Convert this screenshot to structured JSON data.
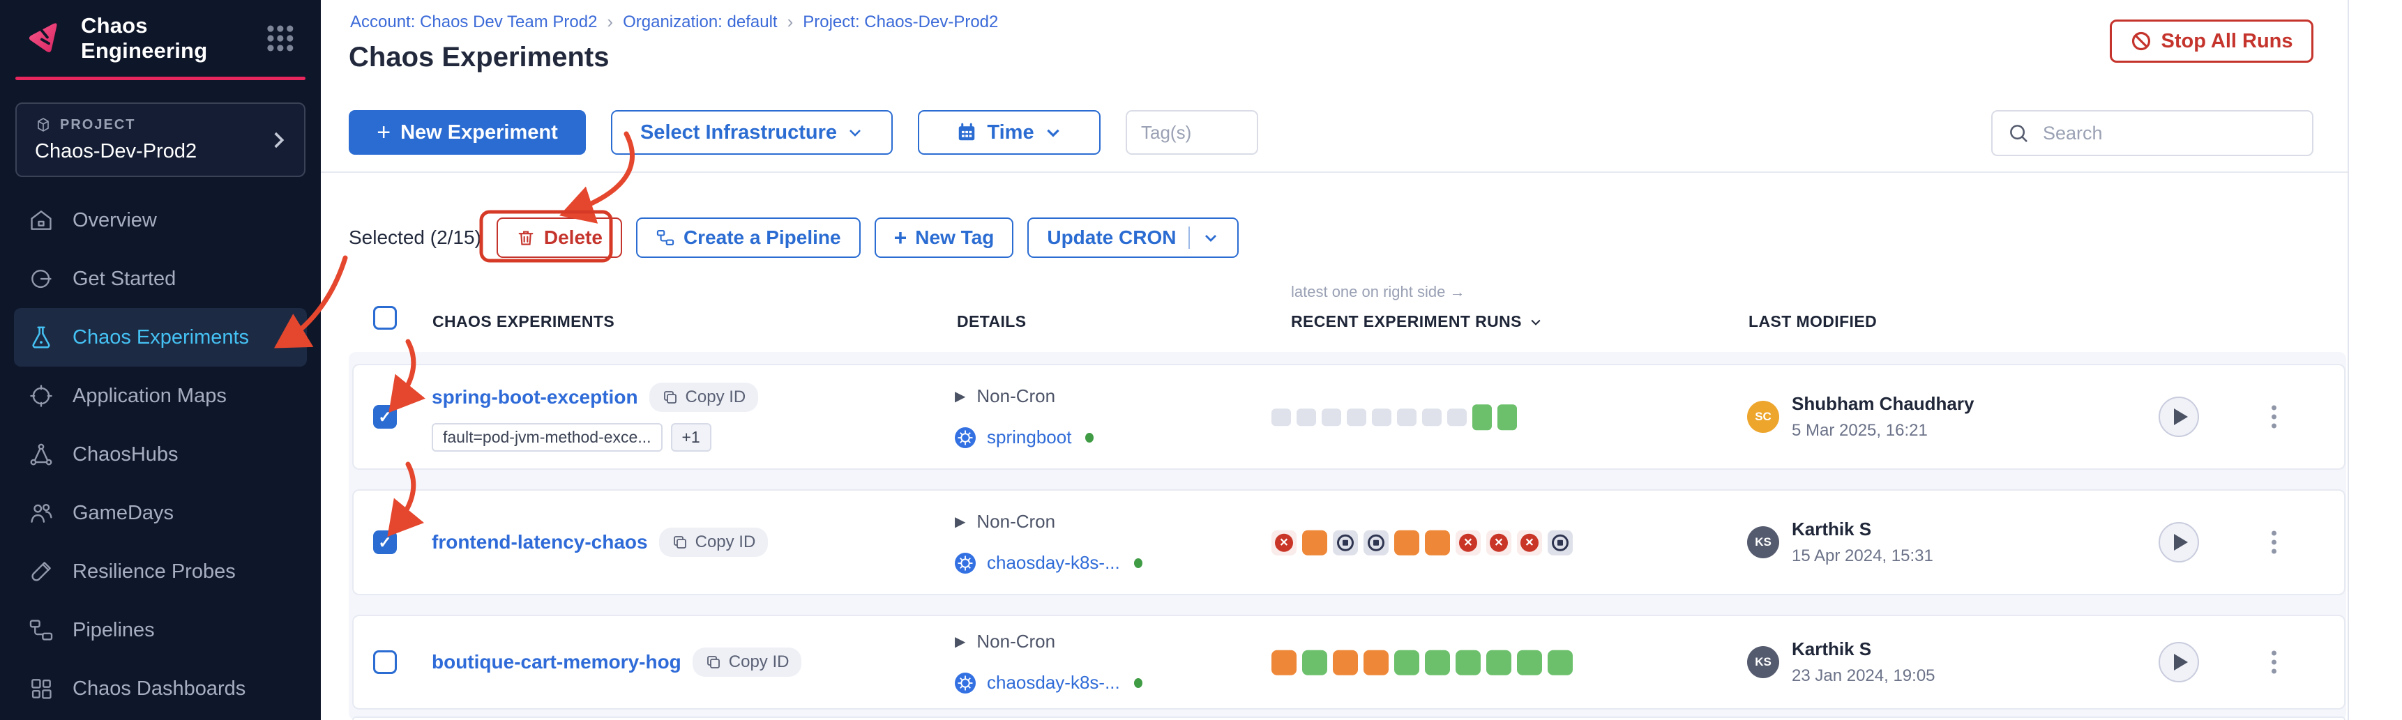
{
  "sidebar": {
    "brand": "Chaos Engineering",
    "project_label": "PROJECT",
    "project_name": "Chaos-Dev-Prod2",
    "items": [
      {
        "label": "Overview",
        "icon": "home-icon"
      },
      {
        "label": "Get Started",
        "icon": "get-started-icon"
      },
      {
        "label": "Chaos Experiments",
        "icon": "flask-icon",
        "active": true
      },
      {
        "label": "Application Maps",
        "icon": "target-icon"
      },
      {
        "label": "ChaosHubs",
        "icon": "network-icon"
      },
      {
        "label": "GameDays",
        "icon": "people-icon"
      },
      {
        "label": "Resilience Probes",
        "icon": "test-tube-icon"
      },
      {
        "label": "Pipelines",
        "icon": "pipeline-icon"
      },
      {
        "label": "Chaos Dashboards",
        "icon": "dashboard-icon"
      }
    ]
  },
  "header": {
    "breadcrumb": [
      {
        "label": "Account: Chaos Dev Team Prod2"
      },
      {
        "label": "Organization: default"
      },
      {
        "label": "Project: Chaos-Dev-Prod2"
      }
    ],
    "title": "Chaos Experiments",
    "stop_all_label": "Stop All Runs"
  },
  "toolbar": {
    "new_experiment": "New Experiment",
    "new_experiment_plus": "+",
    "select_infrastructure": "Select Infrastructure",
    "time": "Time",
    "tags_placeholder": "Tag(s)",
    "search_placeholder": "Search"
  },
  "bulkbar": {
    "selected": "Selected (2/15)",
    "delete": "Delete",
    "create_pipeline": "Create a Pipeline",
    "new_tag": "New Tag",
    "new_tag_plus": "+",
    "update_cron": "Update CRON"
  },
  "table": {
    "note": "latest one on right side →",
    "columns": [
      "CHAOS EXPERIMENTS",
      "DETAILS",
      "RECENT EXPERIMENT RUNS",
      "LAST MODIFIED"
    ],
    "rows": [
      {
        "name": "spring-boot-exception",
        "copy_id": "Copy ID",
        "checked": true,
        "tags": [
          "fault=pod-jvm-method-exce...",
          "+1"
        ],
        "cron": "Non-Cron",
        "infra": "springboot",
        "runs": [
          "gray",
          "gray",
          "gray",
          "gray",
          "gray",
          "gray",
          "gray",
          "gray",
          "pass",
          "pass"
        ],
        "modified_by": "Shubham Chaudhary",
        "initials": "SC",
        "avatar_color": "#eda52c",
        "date": "5 Mar 2025, 16:21"
      },
      {
        "name": "frontend-latency-chaos",
        "copy_id": "Copy ID",
        "checked": true,
        "tags": [],
        "cron": "Non-Cron",
        "infra": "chaosday-k8s-...",
        "runs": [
          "fail",
          "orange",
          "stop",
          "stop",
          "orange",
          "orange",
          "fail",
          "fail",
          "fail",
          "stop"
        ],
        "modified_by": "Karthik S",
        "initials": "KS",
        "avatar_color": "#555b6e",
        "date": "15 Apr 2024, 15:31"
      },
      {
        "name": "boutique-cart-memory-hog",
        "copy_id": "Copy ID",
        "checked": false,
        "tags": [],
        "cron": "Non-Cron",
        "infra": "chaosday-k8s-...",
        "runs": [
          "orange",
          "green",
          "orange",
          "orange",
          "green",
          "green",
          "green",
          "green",
          "green",
          "green"
        ],
        "modified_by": "Karthik S",
        "initials": "KS",
        "avatar_color": "#555b6e",
        "date": "23 Jan 2024, 19:05"
      }
    ]
  },
  "colors": {
    "accent_pink": "#e8265e",
    "primary_blue": "#2b6cd2",
    "link_blue": "#2f6bd8",
    "danger_red": "#c5342c",
    "annotation_red": "#e5472e",
    "run_green": "#6cc06c",
    "run_orange": "#ee8838",
    "run_gray": "#dfe2eb",
    "run_fail_red": "#c93527",
    "sidebar_bg": "#0e1629",
    "sidebar_active_text": "#45c2f4"
  },
  "icons": {
    "legend": [
      "harness-chaos-logo",
      "module-grid-icon",
      "cube-icon",
      "chevron-right-icon",
      "ban-icon",
      "plus-icon",
      "chevron-down-icon",
      "calendar-icon",
      "search-icon",
      "trash-icon",
      "pipeline-icon",
      "copy-icon",
      "kubernetes-icon",
      "play-icon",
      "kebab-menu-icon"
    ]
  }
}
